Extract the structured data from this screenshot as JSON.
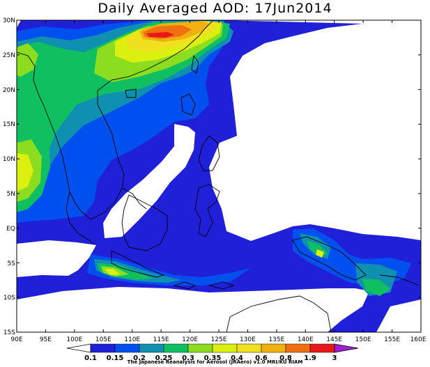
{
  "title": "Daily Averaged AOD: 17Jun2014",
  "credit": "The Japanese Reanalysis for Aerosol (JRAero) v1.0 MRI/KU RIAM",
  "lat_labels": [
    "30N",
    "25N",
    "20N",
    "15N",
    "10N",
    "5N",
    "EQ",
    "5S",
    "10S",
    "15S"
  ],
  "lon_labels": [
    "90E",
    "95E",
    "100E",
    "105E",
    "110E",
    "115E",
    "120E",
    "125E",
    "130E",
    "135E",
    "140E",
    "145E",
    "150E",
    "155E",
    "160E"
  ],
  "colorbar": {
    "labels": [
      "0.1",
      "0.15",
      "0.2",
      "0.25",
      "0.3",
      "0.35",
      "0.4",
      "0.6",
      "0.8",
      "1.9",
      "3"
    ],
    "colors": [
      "#2020d8",
      "#0050f0",
      "#1090b0",
      "#10c060",
      "#8cdc20",
      "#dcf010",
      "#f0e020",
      "#f0b010",
      "#f07010",
      "#e81818",
      "#a020d0"
    ]
  },
  "chart_data": {
    "type": "heatmap",
    "title": "Daily Averaged AOD: 17Jun2014",
    "x_range": [
      "90E",
      "160E"
    ],
    "y_range": [
      "15S",
      "30N"
    ],
    "variable": "AOD",
    "levels": [
      0.1,
      0.15,
      0.2,
      0.25,
      0.3,
      0.35,
      0.4,
      0.6,
      0.8,
      1.9,
      3
    ]
  }
}
